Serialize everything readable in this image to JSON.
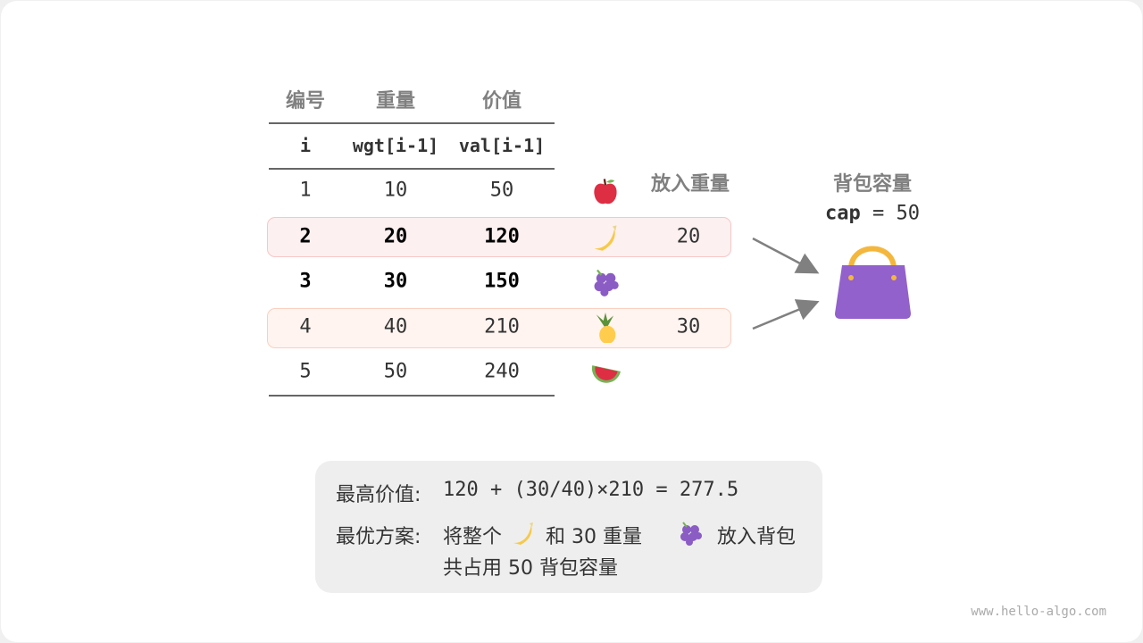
{
  "table": {
    "headers": [
      "编号",
      "重量",
      "价值"
    ],
    "subheaders": [
      "i",
      "wgt[i-1]",
      "val[i-1]"
    ],
    "put_in_header": "放入重量",
    "rows": [
      {
        "i": "1",
        "wgt": "10",
        "val": "50",
        "item": "apple-icon",
        "put": "",
        "highlight": false,
        "bold": false
      },
      {
        "i": "2",
        "wgt": "20",
        "val": "120",
        "item": "banana-icon",
        "put": "20",
        "highlight": true,
        "bold": true
      },
      {
        "i": "3",
        "wgt": "30",
        "val": "150",
        "item": "grapes-icon",
        "put": "",
        "highlight": false,
        "bold": true
      },
      {
        "i": "4",
        "wgt": "40",
        "val": "210",
        "item": "pineapple-icon",
        "put": "30",
        "highlight": true,
        "bold": false
      },
      {
        "i": "5",
        "wgt": "50",
        "val": "240",
        "item": "watermelon-icon",
        "put": "",
        "highlight": false,
        "bold": false
      }
    ]
  },
  "bag": {
    "title": "背包容量",
    "cap_label": "cap",
    "cap_expr": "= 50",
    "icon": "handbag-icon"
  },
  "summary": {
    "line1_label": "最高价值:",
    "line1_value": "120 + (30/40)×210 = 277.5",
    "line2_label": "最优方案:",
    "line2_a": "将整个",
    "line2_b": "和 30 重量",
    "line2_c": "放入背包",
    "line3": "共占用 50 背包容量"
  },
  "watermark": "www.hello-algo.com",
  "colors": {
    "highlight_row2_bg": "#fdf0f0",
    "highlight_row2_border": "#f7c6c6",
    "highlight_row4_bg": "#fff4f0",
    "highlight_row4_border": "#fbcfbf",
    "bag": "#9261cc",
    "handle": "#f4b73e",
    "arrow": "#808080"
  }
}
